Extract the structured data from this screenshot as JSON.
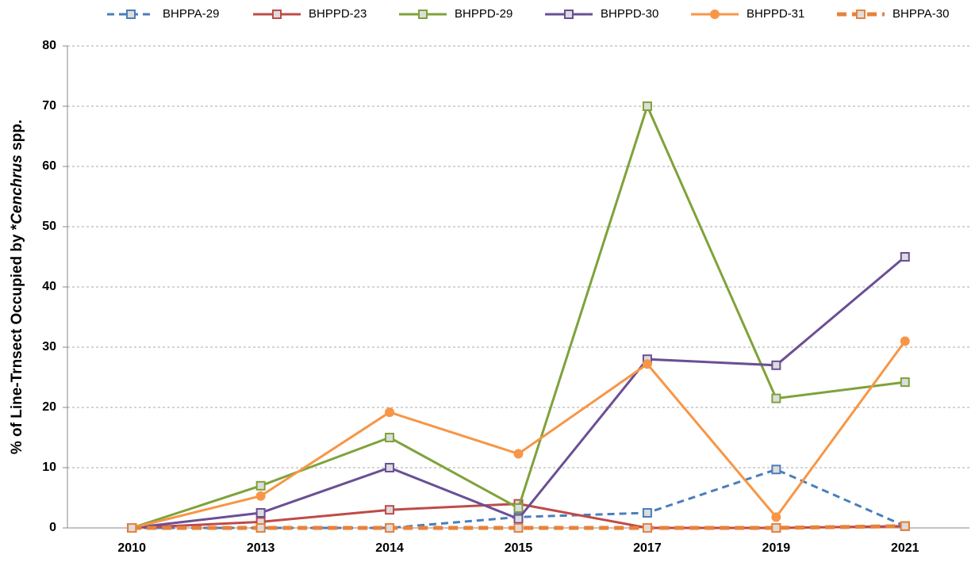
{
  "chart_data": {
    "type": "line",
    "y_label_parts": [
      "% of Line-Trnsect Occupied by  *",
      "Cenchrus",
      " spp."
    ],
    "categories": [
      "2010",
      "2013",
      "2014",
      "2015",
      "2017",
      "2019",
      "2021"
    ],
    "series": [
      {
        "name": "BHPPA-29",
        "color": "#4a7ebb",
        "dashed": true,
        "marker": "square",
        "values": [
          0,
          0,
          0,
          1.8,
          2.5,
          9.7,
          0.3
        ]
      },
      {
        "name": "BHPPD-23",
        "color": "#be4b48",
        "dashed": false,
        "marker": "square",
        "values": [
          0,
          1,
          3,
          4,
          0,
          0,
          0.3
        ]
      },
      {
        "name": "BHPPD-29",
        "color": "#7fa23a",
        "dashed": false,
        "marker": "square",
        "values": [
          0,
          7,
          15,
          3.3,
          70,
          21.5,
          24.2
        ]
      },
      {
        "name": "BHPPD-30",
        "color": "#6a4f94",
        "dashed": false,
        "marker": "square",
        "values": [
          0,
          2.5,
          10,
          1.5,
          28,
          27,
          45
        ]
      },
      {
        "name": "BHPPD-31",
        "color": "#f79646",
        "dashed": false,
        "marker": "circle",
        "values": [
          0,
          5.3,
          19.2,
          12.3,
          27.2,
          1.8,
          31
        ]
      },
      {
        "name": "BHPPA-30",
        "color": "#e8823a",
        "dashed": true,
        "thick": true,
        "marker": "square",
        "values": [
          0,
          0,
          0,
          0,
          0,
          0,
          0.3
        ]
      }
    ],
    "ylim": [
      0,
      80
    ],
    "yticks": [
      0,
      10,
      20,
      30,
      40,
      50,
      60,
      70,
      80
    ],
    "grid": true,
    "legend": "top"
  }
}
